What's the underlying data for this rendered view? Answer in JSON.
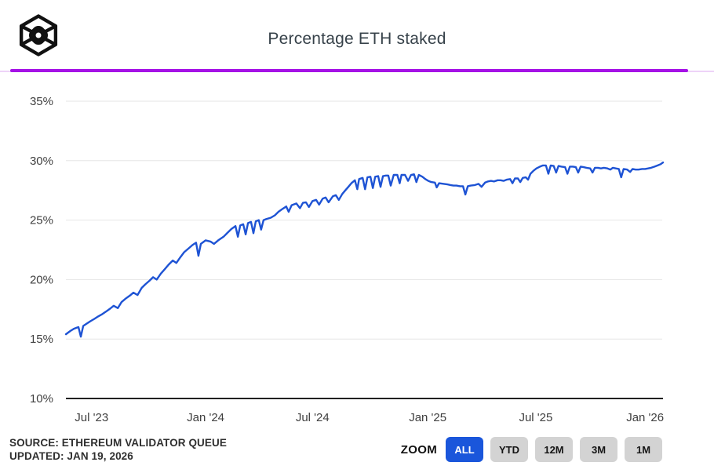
{
  "theme": {
    "accent_purple": "#a512e6",
    "purple_track": "#eed3f8",
    "title_color": "#37424a",
    "source_color": "#2f2f2f",
    "btn_active_bg": "#1a56db",
    "btn_active_text": "#ffffff",
    "btn_bg": "#d3d3d3",
    "btn_text": "#141414"
  },
  "header": {
    "title": "Percentage ETH staked"
  },
  "branding": {
    "logo": "block-cube-logo"
  },
  "chart_data": {
    "type": "line",
    "title": "Percentage ETH staked",
    "series_name": "Percentage ETH staked",
    "x_domain": [
      "May 2023",
      "Jan 2026"
    ],
    "ylim": [
      10,
      35
    ],
    "y_ticks": [
      35,
      30,
      25,
      20,
      15,
      10
    ],
    "y_tick_suffix": "%",
    "x_ticks": [
      {
        "label": "Jul '23",
        "t": 0.043
      },
      {
        "label": "Jan '24",
        "t": 0.234
      },
      {
        "label": "Jul '24",
        "t": 0.413
      },
      {
        "label": "Jan '25",
        "t": 0.606
      },
      {
        "label": "Jul '25",
        "t": 0.787
      },
      {
        "label": "Jan '26",
        "t": 0.97
      }
    ],
    "grid": true,
    "legend": "none",
    "colors": {
      "line": "#1e53d4",
      "grid": "#e6e6e6",
      "axis": "#212121",
      "tick_text": "#3f3f3f"
    },
    "points": [
      [
        0.0,
        15.4
      ],
      [
        0.004,
        15.55
      ],
      [
        0.008,
        15.7
      ],
      [
        0.013,
        15.85
      ],
      [
        0.018,
        15.95
      ],
      [
        0.021,
        16.0
      ],
      [
        0.025,
        15.2
      ],
      [
        0.029,
        16.1
      ],
      [
        0.035,
        16.3
      ],
      [
        0.041,
        16.5
      ],
      [
        0.048,
        16.7
      ],
      [
        0.054,
        16.9
      ],
      [
        0.061,
        17.1
      ],
      [
        0.067,
        17.3
      ],
      [
        0.074,
        17.55
      ],
      [
        0.08,
        17.8
      ],
      [
        0.087,
        17.6
      ],
      [
        0.093,
        18.1
      ],
      [
        0.1,
        18.4
      ],
      [
        0.107,
        18.65
      ],
      [
        0.113,
        18.9
      ],
      [
        0.12,
        18.7
      ],
      [
        0.127,
        19.3
      ],
      [
        0.133,
        19.6
      ],
      [
        0.14,
        19.9
      ],
      [
        0.146,
        20.2
      ],
      [
        0.152,
        20.0
      ],
      [
        0.159,
        20.5
      ],
      [
        0.166,
        20.9
      ],
      [
        0.172,
        21.25
      ],
      [
        0.179,
        21.6
      ],
      [
        0.185,
        21.4
      ],
      [
        0.192,
        21.9
      ],
      [
        0.198,
        22.3
      ],
      [
        0.205,
        22.6
      ],
      [
        0.212,
        22.9
      ],
      [
        0.218,
        23.1
      ],
      [
        0.222,
        22.0
      ],
      [
        0.226,
        23.0
      ],
      [
        0.234,
        23.3
      ],
      [
        0.242,
        23.2
      ],
      [
        0.248,
        23.0
      ],
      [
        0.255,
        23.3
      ],
      [
        0.264,
        23.6
      ],
      [
        0.271,
        23.95
      ],
      [
        0.277,
        24.25
      ],
      [
        0.284,
        24.5
      ],
      [
        0.288,
        23.6
      ],
      [
        0.292,
        24.55
      ],
      [
        0.297,
        24.65
      ],
      [
        0.301,
        23.8
      ],
      [
        0.305,
        24.75
      ],
      [
        0.31,
        24.85
      ],
      [
        0.314,
        23.9
      ],
      [
        0.318,
        24.9
      ],
      [
        0.323,
        25.0
      ],
      [
        0.327,
        24.2
      ],
      [
        0.331,
        25.0
      ],
      [
        0.336,
        25.1
      ],
      [
        0.343,
        25.2
      ],
      [
        0.35,
        25.4
      ],
      [
        0.356,
        25.7
      ],
      [
        0.363,
        25.95
      ],
      [
        0.369,
        26.15
      ],
      [
        0.373,
        25.7
      ],
      [
        0.378,
        26.25
      ],
      [
        0.386,
        26.4
      ],
      [
        0.392,
        26.0
      ],
      [
        0.397,
        26.45
      ],
      [
        0.402,
        26.5
      ],
      [
        0.407,
        26.1
      ],
      [
        0.413,
        26.6
      ],
      [
        0.419,
        26.7
      ],
      [
        0.424,
        26.3
      ],
      [
        0.43,
        26.8
      ],
      [
        0.435,
        26.9
      ],
      [
        0.44,
        26.5
      ],
      [
        0.447,
        27.0
      ],
      [
        0.452,
        27.1
      ],
      [
        0.457,
        26.7
      ],
      [
        0.463,
        27.2
      ],
      [
        0.468,
        27.5
      ],
      [
        0.473,
        27.8
      ],
      [
        0.478,
        28.1
      ],
      [
        0.484,
        28.35
      ],
      [
        0.488,
        27.6
      ],
      [
        0.491,
        28.45
      ],
      [
        0.497,
        28.55
      ],
      [
        0.501,
        27.6
      ],
      [
        0.505,
        28.6
      ],
      [
        0.51,
        28.65
      ],
      [
        0.514,
        27.7
      ],
      [
        0.518,
        28.65
      ],
      [
        0.523,
        28.7
      ],
      [
        0.527,
        27.8
      ],
      [
        0.531,
        28.7
      ],
      [
        0.536,
        28.75
      ],
      [
        0.54,
        28.75
      ],
      [
        0.544,
        27.9
      ],
      [
        0.549,
        28.8
      ],
      [
        0.555,
        28.8
      ],
      [
        0.559,
        28.1
      ],
      [
        0.562,
        28.8
      ],
      [
        0.568,
        28.8
      ],
      [
        0.573,
        28.3
      ],
      [
        0.578,
        28.8
      ],
      [
        0.583,
        28.85
      ],
      [
        0.587,
        28.2
      ],
      [
        0.591,
        28.8
      ],
      [
        0.597,
        28.65
      ],
      [
        0.602,
        28.45
      ],
      [
        0.607,
        28.3
      ],
      [
        0.612,
        28.2
      ],
      [
        0.618,
        28.15
      ],
      [
        0.621,
        27.75
      ],
      [
        0.625,
        28.1
      ],
      [
        0.633,
        28.05
      ],
      [
        0.639,
        28.0
      ],
      [
        0.644,
        27.95
      ],
      [
        0.649,
        27.9
      ],
      [
        0.654,
        27.9
      ],
      [
        0.66,
        27.85
      ],
      [
        0.665,
        27.85
      ],
      [
        0.669,
        27.15
      ],
      [
        0.673,
        27.85
      ],
      [
        0.678,
        27.9
      ],
      [
        0.685,
        27.95
      ],
      [
        0.691,
        28.05
      ],
      [
        0.696,
        27.8
      ],
      [
        0.702,
        28.15
      ],
      [
        0.707,
        28.25
      ],
      [
        0.712,
        28.3
      ],
      [
        0.717,
        28.25
      ],
      [
        0.723,
        28.35
      ],
      [
        0.728,
        28.35
      ],
      [
        0.733,
        28.3
      ],
      [
        0.738,
        28.4
      ],
      [
        0.744,
        28.45
      ],
      [
        0.748,
        28.1
      ],
      [
        0.752,
        28.5
      ],
      [
        0.757,
        28.5
      ],
      [
        0.761,
        28.2
      ],
      [
        0.765,
        28.55
      ],
      [
        0.77,
        28.6
      ],
      [
        0.774,
        28.4
      ],
      [
        0.778,
        28.9
      ],
      [
        0.783,
        29.15
      ],
      [
        0.788,
        29.35
      ],
      [
        0.794,
        29.5
      ],
      [
        0.799,
        29.6
      ],
      [
        0.804,
        29.6
      ],
      [
        0.808,
        28.9
      ],
      [
        0.812,
        29.6
      ],
      [
        0.817,
        29.55
      ],
      [
        0.821,
        29.0
      ],
      [
        0.825,
        29.55
      ],
      [
        0.83,
        29.5
      ],
      [
        0.836,
        29.45
      ],
      [
        0.84,
        28.9
      ],
      [
        0.844,
        29.5
      ],
      [
        0.849,
        29.5
      ],
      [
        0.854,
        29.45
      ],
      [
        0.858,
        29.0
      ],
      [
        0.862,
        29.5
      ],
      [
        0.867,
        29.45
      ],
      [
        0.872,
        29.4
      ],
      [
        0.878,
        29.35
      ],
      [
        0.882,
        29.0
      ],
      [
        0.886,
        29.4
      ],
      [
        0.891,
        29.4
      ],
      [
        0.896,
        29.35
      ],
      [
        0.901,
        29.4
      ],
      [
        0.907,
        29.35
      ],
      [
        0.912,
        29.25
      ],
      [
        0.916,
        29.4
      ],
      [
        0.921,
        29.35
      ],
      [
        0.926,
        29.3
      ],
      [
        0.93,
        28.6
      ],
      [
        0.934,
        29.3
      ],
      [
        0.94,
        29.25
      ],
      [
        0.945,
        29.05
      ],
      [
        0.949,
        29.3
      ],
      [
        0.954,
        29.25
      ],
      [
        0.959,
        29.25
      ],
      [
        0.965,
        29.3
      ],
      [
        0.97,
        29.3
      ],
      [
        0.975,
        29.35
      ],
      [
        0.98,
        29.4
      ],
      [
        0.986,
        29.5
      ],
      [
        0.991,
        29.6
      ],
      [
        0.996,
        29.7
      ],
      [
        1.0,
        29.85
      ]
    ]
  },
  "footer": {
    "source_line1": "SOURCE: ETHEREUM VALIDATOR QUEUE",
    "source_line2": "UPDATED: JAN 19, 2026",
    "zoom_label": "ZOOM",
    "zoom_buttons": [
      {
        "label": "ALL",
        "active": true
      },
      {
        "label": "YTD",
        "active": false
      },
      {
        "label": "12M",
        "active": false
      },
      {
        "label": "3M",
        "active": false
      },
      {
        "label": "1M",
        "active": false
      }
    ]
  }
}
